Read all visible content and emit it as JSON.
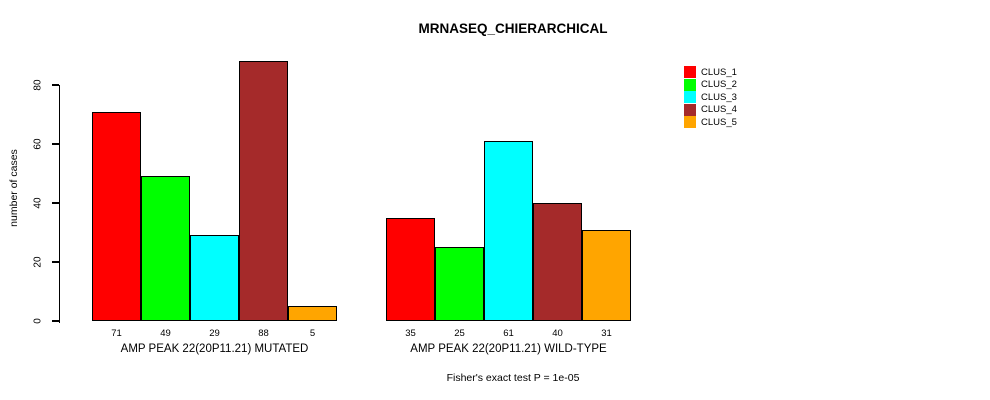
{
  "title": "MRNASEQ_CHIERARCHICAL",
  "y_axis": {
    "label": "number of cases",
    "ticks": [
      "0",
      "20",
      "40",
      "60",
      "80"
    ]
  },
  "legend": {
    "items": [
      {
        "label": "CLUS_1",
        "color": "#FF0000"
      },
      {
        "label": "CLUS_2",
        "color": "#00FF00"
      },
      {
        "label": "CLUS_3",
        "color": "#00FFFF"
      },
      {
        "label": "CLUS_4",
        "color": "#A52A2A"
      },
      {
        "label": "CLUS_5",
        "color": "#FFA500"
      }
    ]
  },
  "footer": "Fisher's exact test P = 1e-05",
  "chart_data": {
    "type": "bar",
    "title": "MRNASEQ_CHIERARCHICAL",
    "xlabel": "",
    "ylabel": "number of cases",
    "ylim": [
      0,
      88
    ],
    "yticks": [
      0,
      20,
      40,
      60,
      80
    ],
    "grid": false,
    "legend_position": "right",
    "series_names": [
      "CLUS_1",
      "CLUS_2",
      "CLUS_3",
      "CLUS_4",
      "CLUS_5"
    ],
    "colors": [
      "#FF0000",
      "#00FF00",
      "#00FFFF",
      "#A52A2A",
      "#FFA500"
    ],
    "groups": [
      {
        "label": "AMP PEAK 22(20P11.21) MUTATED",
        "values": [
          71,
          49,
          29,
          88,
          5
        ]
      },
      {
        "label": "AMP PEAK 22(20P11.21) WILD-TYPE",
        "values": [
          35,
          25,
          61,
          40,
          31
        ]
      }
    ],
    "bar_value_labels_shown": true,
    "annotation": "Fisher's exact test P = 1e-05"
  }
}
